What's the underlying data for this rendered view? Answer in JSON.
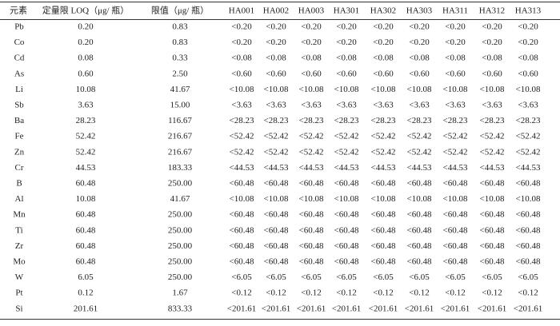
{
  "table": {
    "header": [
      "元素",
      "定量限 LOQ（μg/ 瓶）",
      "限值（μg/ 瓶）",
      "HA001",
      "HA002",
      "HA003",
      "HA301",
      "HA302",
      "HA303",
      "HA311",
      "HA312",
      "HA313"
    ],
    "rows": [
      [
        "Pb",
        "0.20",
        "0.83",
        "<0.20",
        "<0.20",
        "<0.20",
        "<0.20",
        "<0.20",
        "<0.20",
        "<0.20",
        "<0.20",
        "<0.20"
      ],
      [
        "Co",
        "0.20",
        "0.83",
        "<0.20",
        "<0.20",
        "<0.20",
        "<0.20",
        "<0.20",
        "<0.20",
        "<0.20",
        "<0.20",
        "<0.20"
      ],
      [
        "Cd",
        "0.08",
        "0.33",
        "<0.08",
        "<0.08",
        "<0.08",
        "<0.08",
        "<0.08",
        "<0.08",
        "<0.08",
        "<0.08",
        "<0.08"
      ],
      [
        "As",
        "0.60",
        "2.50",
        "<0.60",
        "<0.60",
        "<0.60",
        "<0.60",
        "<0.60",
        "<0.60",
        "<0.60",
        "<0.60",
        "<0.60"
      ],
      [
        "Li",
        "10.08",
        "41.67",
        "<10.08",
        "<10.08",
        "<10.08",
        "<10.08",
        "<10.08",
        "<10.08",
        "<10.08",
        "<10.08",
        "<10.08"
      ],
      [
        "Sb",
        "3.63",
        "15.00",
        "<3.63",
        "<3.63",
        "<3.63",
        "<3.63",
        "<3.63",
        "<3.63",
        "<3.63",
        "<3.63",
        "<3.63"
      ],
      [
        "Ba",
        "28.23",
        "116.67",
        "<28.23",
        "<28.23",
        "<28.23",
        "<28.23",
        "<28.23",
        "<28.23",
        "<28.23",
        "<28.23",
        "<28.23"
      ],
      [
        "Fe",
        "52.42",
        "216.67",
        "<52.42",
        "<52.42",
        "<52.42",
        "<52.42",
        "<52.42",
        "<52.42",
        "<52.42",
        "<52.42",
        "<52.42"
      ],
      [
        "Zn",
        "52.42",
        "216.67",
        "<52.42",
        "<52.42",
        "<52.42",
        "<52.42",
        "<52.42",
        "<52.42",
        "<52.42",
        "<52.42",
        "<52.42"
      ],
      [
        "Cr",
        "44.53",
        "183.33",
        "<44.53",
        "<44.53",
        "<44.53",
        "<44.53",
        "<44.53",
        "<44.53",
        "<44.53",
        "<44.53",
        "<44.53"
      ],
      [
        "B",
        "60.48",
        "250.00",
        "<60.48",
        "<60.48",
        "<60.48",
        "<60.48",
        "<60.48",
        "<60.48",
        "<60.48",
        "<60.48",
        "<60.48"
      ],
      [
        "Al",
        "10.08",
        "41.67",
        "<10.08",
        "<10.08",
        "<10.08",
        "<10.08",
        "<10.08",
        "<10.08",
        "<10.08",
        "<10.08",
        "<10.08"
      ],
      [
        "Mn",
        "60.48",
        "250.00",
        "<60.48",
        "<60.48",
        "<60.48",
        "<60.48",
        "<60.48",
        "<60.48",
        "<60.48",
        "<60.48",
        "<60.48"
      ],
      [
        "Ti",
        "60.48",
        "250.00",
        "<60.48",
        "<60.48",
        "<60.48",
        "<60.48",
        "<60.48",
        "<60.48",
        "<60.48",
        "<60.48",
        "<60.48"
      ],
      [
        "Zr",
        "60.48",
        "250.00",
        "<60.48",
        "<60.48",
        "<60.48",
        "<60.48",
        "<60.48",
        "<60.48",
        "<60.48",
        "<60.48",
        "<60.48"
      ],
      [
        "Mo",
        "60.48",
        "250.00",
        "<60.48",
        "<60.48",
        "<60.48",
        "<60.48",
        "<60.48",
        "<60.48",
        "<60.48",
        "<60.48",
        "<60.48"
      ],
      [
        "W",
        "6.05",
        "250.00",
        "<6.05",
        "<6.05",
        "<6.05",
        "<6.05",
        "<6.05",
        "<6.05",
        "<6.05",
        "<6.05",
        "<6.05"
      ],
      [
        "Pt",
        "0.12",
        "1.67",
        "<0.12",
        "<0.12",
        "<0.12",
        "<0.12",
        "<0.12",
        "<0.12",
        "<0.12",
        "<0.12",
        "<0.12"
      ],
      [
        "Si",
        "201.61",
        "833.33",
        "<201.61",
        "<201.61",
        "<201.61",
        "<201.61",
        "<201.61",
        "<201.61",
        "<201.61",
        "<201.61",
        "<201.61"
      ]
    ]
  }
}
